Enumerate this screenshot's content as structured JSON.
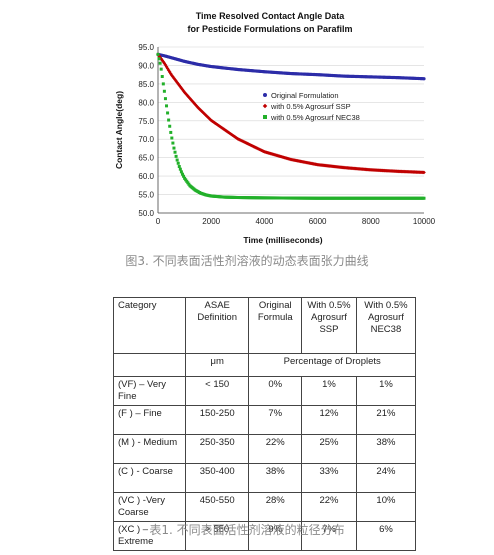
{
  "chart_data": {
    "type": "scatter",
    "title": [
      "Time Resolved Contact Angle Data",
      "for Pesticide Formulations on Parafilm"
    ],
    "xlabel": "Time (milliseconds)",
    "ylabel": "Contact Angle(deg)",
    "xlim": [
      0,
      10000
    ],
    "ylim": [
      50,
      95
    ],
    "xticks": [
      "0",
      "2000",
      "4000",
      "6000",
      "8000",
      "10000"
    ],
    "yticks": [
      "50.0",
      "55.0",
      "60.0",
      "65.0",
      "70.0",
      "75.0",
      "80.0",
      "85.0",
      "90.0",
      "95.0"
    ],
    "legend_position": "right",
    "series": [
      {
        "name": "Original Formulation",
        "color": "#2c2ca8",
        "marker": "circle",
        "x": [
          0,
          250,
          500,
          1000,
          1500,
          2000,
          3000,
          4000,
          5000,
          6000,
          7000,
          8000,
          9000,
          10000
        ],
        "y": [
          93.0,
          92.6,
          92.1,
          91.1,
          90.3,
          89.7,
          88.9,
          88.3,
          87.8,
          87.5,
          87.1,
          86.9,
          86.7,
          86.4
        ]
      },
      {
        "name": "with 0.5% Agrosurf SSP",
        "color": "#c00000",
        "marker": "diamond",
        "x": [
          0,
          250,
          500,
          1000,
          1500,
          2000,
          3000,
          4000,
          5000,
          6000,
          7000,
          8000,
          9000,
          10000
        ],
        "y": [
          93.0,
          90.5,
          87.5,
          82.7,
          78.6,
          75.1,
          70.1,
          66.6,
          64.5,
          63.1,
          62.3,
          61.7,
          61.3,
          61.0
        ]
      },
      {
        "name": "with 0.5% Agrosurf NEC38",
        "color": "#22b02a",
        "marker": "square",
        "x": [
          0,
          100,
          200,
          300,
          400,
          500,
          600,
          700,
          800,
          900,
          1000,
          1200,
          1400,
          1600,
          1800,
          2000,
          2500,
          3000,
          4000,
          6000,
          8000,
          10000
        ],
        "y": [
          93.0,
          90.0,
          85.0,
          80.0,
          75.2,
          71.0,
          67.6,
          64.8,
          62.6,
          60.8,
          59.4,
          57.4,
          56.2,
          55.4,
          54.9,
          54.6,
          54.3,
          54.2,
          54.1,
          54.0,
          54.0,
          54.0
        ]
      }
    ]
  },
  "figure_caption": "图3. 不同表面活性剂溶液的动态表面张力曲线",
  "table": {
    "header": [
      "Category",
      "ASAE Definition",
      "Original Formula",
      "With 0.5% Agrosurf SSP",
      "With 0.5% Agrosurf NEC38"
    ],
    "unit_row": [
      "",
      "μm",
      "Percentage of Droplets"
    ],
    "rows": [
      {
        "category": "(VF) – Very Fine",
        "asae": "< 150",
        "original": "0%",
        "ssp": "1%",
        "nec38": "1%"
      },
      {
        "category": "(F ) – Fine",
        "asae": "150-250",
        "original": "7%",
        "ssp": "12%",
        "nec38": "21%"
      },
      {
        "category": "(M ) - Medium",
        "asae": "250-350",
        "original": "22%",
        "ssp": "25%",
        "nec38": "38%"
      },
      {
        "category": "(C ) - Coarse",
        "asae": "350-400",
        "original": "38%",
        "ssp": "33%",
        "nec38": "24%"
      },
      {
        "category": "(VC ) -Very Coarse",
        "asae": "450-550",
        "original": "28%",
        "ssp": "22%",
        "nec38": "10%"
      },
      {
        "category": "(XC ) – Extreme",
        "asae": "> 550",
        "original": "9%",
        "ssp": "7%",
        "nec38": "6%"
      }
    ]
  },
  "table_caption": "表1. 不同表面活性剂溶液的粒径分布"
}
